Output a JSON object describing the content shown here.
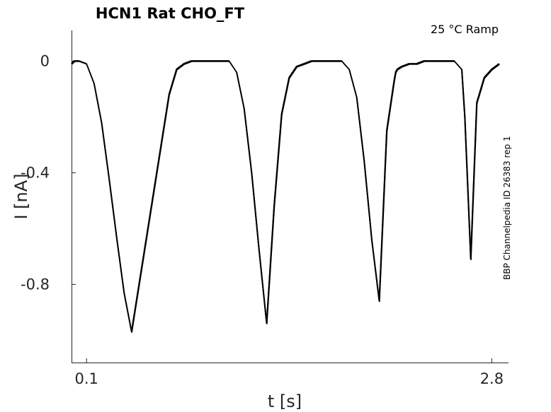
{
  "chart_data": {
    "type": "line",
    "title": "HCN1  Rat  CHO_FT",
    "condition_label": "25 °C  Ramp",
    "source_label": "BBP Channelpedia ID 26383 rep 1",
    "xlabel": "t [s]",
    "ylabel": "I [nA]",
    "x_ticks": [
      {
        "value": 0.1,
        "label": "0.1"
      },
      {
        "value": 2.8,
        "label": "2.8"
      }
    ],
    "y_ticks": [
      {
        "value": 0,
        "label": "0"
      },
      {
        "value": -0.4,
        "label": "-0.4"
      },
      {
        "value": -0.8,
        "label": "-0.8"
      }
    ],
    "xlim": [
      0,
      2.85
    ],
    "ylim": [
      -1.08,
      0.11
    ],
    "grid": false,
    "series": [
      {
        "x": [
          0.0,
          0.02,
          0.05,
          0.1,
          0.15,
          0.2,
          0.25,
          0.3,
          0.35,
          0.4,
          0.45,
          0.5,
          0.55,
          0.6,
          0.65,
          0.7,
          0.75,
          0.8,
          0.85,
          0.9,
          0.95,
          1.0,
          1.05,
          1.1,
          1.15,
          1.2,
          1.25,
          1.3,
          1.35,
          1.4,
          1.45,
          1.5,
          1.55,
          1.6,
          1.65,
          1.7,
          1.75,
          1.8,
          1.85,
          1.9,
          1.95,
          2.0,
          2.05,
          2.1,
          2.15,
          2.16,
          2.17,
          2.2,
          2.25,
          2.3,
          2.35,
          2.4,
          2.45,
          2.5,
          2.55,
          2.6,
          2.62,
          2.66,
          2.7,
          2.75,
          2.8,
          2.85
        ],
        "y": [
          -0.01,
          0.0,
          0.0,
          -0.01,
          -0.08,
          -0.22,
          -0.42,
          -0.63,
          -0.83,
          -0.97,
          -0.8,
          -0.63,
          -0.46,
          -0.29,
          -0.12,
          -0.03,
          -0.01,
          0.0,
          0.0,
          0.0,
          0.0,
          0.0,
          0.0,
          -0.04,
          -0.17,
          -0.4,
          -0.68,
          -0.94,
          -0.52,
          -0.19,
          -0.06,
          -0.02,
          -0.01,
          0.0,
          0.0,
          0.0,
          0.0,
          0.0,
          -0.03,
          -0.13,
          -0.36,
          -0.64,
          -0.86,
          -0.25,
          -0.07,
          -0.04,
          -0.03,
          -0.02,
          -0.01,
          -0.01,
          0.0,
          0.0,
          0.0,
          0.0,
          0.0,
          -0.03,
          -0.2,
          -0.71,
          -0.15,
          -0.06,
          -0.03,
          -0.01
        ]
      }
    ]
  }
}
